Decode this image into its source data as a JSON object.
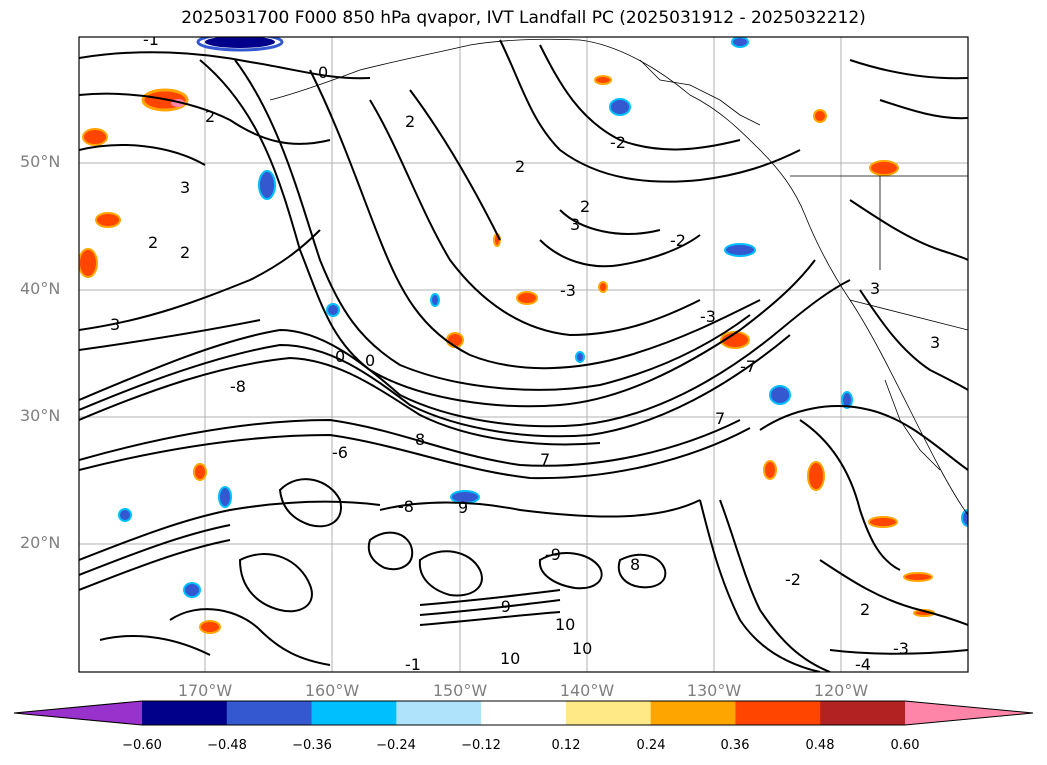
{
  "title": "2025031700 F000 850 hPa qvapor, IVT Landfall PC (2025031912 - 2025032212)",
  "lat_labels": [
    "50°N",
    "40°N",
    "30°N",
    "20°N"
  ],
  "lon_labels": [
    "170°W",
    "160°W",
    "150°W",
    "140°W",
    "130°W",
    "120°W"
  ],
  "contour_labels": [
    "-1",
    "0",
    "2",
    "2",
    "2",
    "3",
    "2",
    "2",
    "2",
    "-2",
    "3",
    "-3",
    "-3",
    "0",
    "0",
    "3",
    "3",
    "3",
    "-8",
    "-7",
    "7",
    "-6",
    "8",
    "7",
    "9",
    "-8",
    "-9",
    "8",
    "-9",
    "10",
    "10",
    "10",
    "-2",
    "2",
    "-3",
    "-4",
    "-1",
    "-2"
  ],
  "colorbar": {
    "ticks": [
      "−0.60",
      "−0.48",
      "−0.36",
      "−0.24",
      "−0.12",
      "0.12",
      "0.24",
      "0.36",
      "0.48",
      "0.60"
    ],
    "colors": [
      "#9932cc",
      "#00008b",
      "#3358d0",
      "#00bfff",
      "#aee3fb",
      "#ffffff",
      "#ffe987",
      "#ffa500",
      "#ff4500",
      "#b22222",
      "#ff85a8"
    ]
  }
}
